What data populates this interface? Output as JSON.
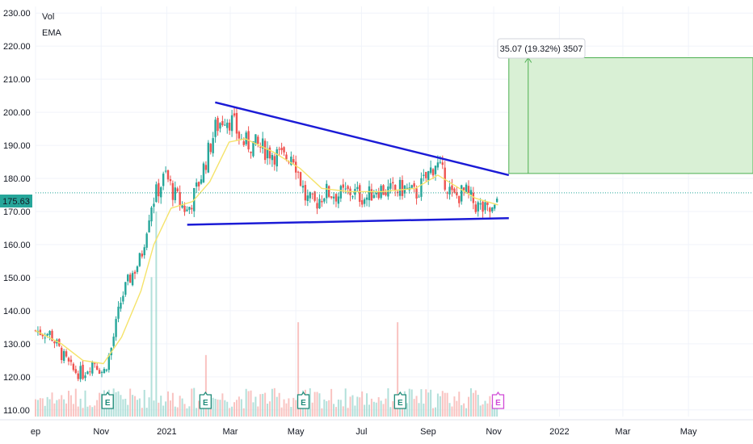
{
  "legend": [
    "Vol",
    "EMA"
  ],
  "current_price": "175.63",
  "measure_label": "35.07 (19.32%) 3507",
  "colors": {
    "up": "#26a69a",
    "down": "#ef5350",
    "ema": "#f5e36a",
    "trendline": "#1b1bd6",
    "measure_fill": "#d9f0d5",
    "measure_stroke": "#4caf50",
    "price_line": "#26a69a",
    "earnings_past": "#1e8a78",
    "earnings_future": "#d04ad6"
  },
  "icons": {
    "earnings_marker": "earnings-e-icon"
  },
  "chart_data": {
    "type": "candlestick",
    "title": "",
    "y_axis": {
      "range": [
        108,
        232
      ],
      "ticks": [
        "110.00",
        "120.00",
        "130.00",
        "140.00",
        "150.00",
        "160.00",
        "170.00",
        "180.00",
        "190.00",
        "200.00",
        "210.00",
        "220.00",
        "230.00"
      ]
    },
    "x_axis": {
      "range": [
        "2020-09-01",
        "2022-06-30"
      ],
      "ticks": [
        {
          "date": "2020-09-01",
          "label": "ep"
        },
        {
          "date": "2020-11-01",
          "label": "Nov"
        },
        {
          "date": "2021-01-01",
          "label": "2021"
        },
        {
          "date": "2021-03-01",
          "label": "Mar"
        },
        {
          "date": "2021-05-01",
          "label": "May"
        },
        {
          "date": "2021-07-01",
          "label": "Jul"
        },
        {
          "date": "2021-09-01",
          "label": "Sep"
        },
        {
          "date": "2021-11-01",
          "label": "Nov"
        },
        {
          "date": "2022-01-01",
          "label": "2022"
        },
        {
          "date": "2022-03-01",
          "label": "Mar"
        },
        {
          "date": "2022-05-01",
          "label": "May"
        }
      ]
    },
    "price_path": [
      [
        "2020-09-01",
        134
      ],
      [
        "2020-09-15",
        133
      ],
      [
        "2020-09-25",
        127
      ],
      [
        "2020-10-05",
        122
      ],
      [
        "2020-10-15",
        121
      ],
      [
        "2020-10-25",
        125
      ],
      [
        "2020-11-03",
        121
      ],
      [
        "2020-11-10",
        128
      ],
      [
        "2020-11-20",
        144
      ],
      [
        "2020-11-28",
        150
      ],
      [
        "2020-12-08",
        156
      ],
      [
        "2020-12-17",
        172
      ],
      [
        "2020-12-23",
        176
      ],
      [
        "2020-12-31",
        181
      ],
      [
        "2021-01-08",
        175
      ],
      [
        "2021-01-20",
        170
      ],
      [
        "2021-01-28",
        176
      ],
      [
        "2021-02-06",
        185
      ],
      [
        "2021-02-15",
        195
      ],
      [
        "2021-02-24",
        199
      ],
      [
        "2021-03-03",
        197
      ],
      [
        "2021-03-12",
        191
      ],
      [
        "2021-03-25",
        190
      ],
      [
        "2021-04-08",
        188
      ],
      [
        "2021-04-20",
        186
      ],
      [
        "2021-04-28",
        188
      ],
      [
        "2021-05-10",
        174
      ],
      [
        "2021-05-18",
        172
      ],
      [
        "2021-05-28",
        176
      ],
      [
        "2021-06-10",
        175
      ],
      [
        "2021-06-22",
        176
      ],
      [
        "2021-07-05",
        174
      ],
      [
        "2021-07-15",
        177
      ],
      [
        "2021-07-28",
        176
      ],
      [
        "2021-08-10",
        177
      ],
      [
        "2021-08-20",
        175
      ],
      [
        "2021-08-30",
        180
      ],
      [
        "2021-09-08",
        185
      ],
      [
        "2021-09-16",
        180
      ],
      [
        "2021-09-24",
        174
      ],
      [
        "2021-10-05",
        176
      ],
      [
        "2021-10-15",
        172
      ],
      [
        "2021-10-25",
        170
      ],
      [
        "2021-11-02",
        170
      ],
      [
        "2021-11-05",
        175.63
      ]
    ],
    "ema_path": [
      [
        "2020-09-01",
        134
      ],
      [
        "2020-09-25",
        130
      ],
      [
        "2020-10-15",
        125
      ],
      [
        "2020-11-03",
        124
      ],
      [
        "2020-11-20",
        132
      ],
      [
        "2020-12-08",
        146
      ],
      [
        "2020-12-20",
        160
      ],
      [
        "2021-01-05",
        171
      ],
      [
        "2021-01-25",
        173
      ],
      [
        "2021-02-10",
        179
      ],
      [
        "2021-02-28",
        191
      ],
      [
        "2021-03-15",
        192
      ],
      [
        "2021-04-10",
        188
      ],
      [
        "2021-05-05",
        183
      ],
      [
        "2021-05-25",
        177
      ],
      [
        "2021-06-20",
        176
      ],
      [
        "2021-07-20",
        176
      ],
      [
        "2021-08-20",
        177
      ],
      [
        "2021-09-10",
        181
      ],
      [
        "2021-09-25",
        178
      ],
      [
        "2021-10-15",
        174
      ],
      [
        "2021-11-05",
        172
      ]
    ],
    "trendlines": [
      {
        "start": [
          "2021-02-15",
          203
        ],
        "end": [
          "2021-11-15",
          181
        ]
      },
      {
        "start": [
          "2021-01-20",
          166
        ],
        "end": [
          "2021-11-15",
          168
        ]
      }
    ],
    "measure_box": {
      "start": "2021-11-15",
      "end": "2022-06-30",
      "low": 181.5,
      "high": 216.5,
      "arrow_date": "2021-12-03"
    },
    "earnings_dates": [
      {
        "date": "2020-11-07",
        "status": "past"
      },
      {
        "date": "2021-02-06",
        "status": "past"
      },
      {
        "date": "2021-05-08",
        "status": "past"
      },
      {
        "date": "2021-08-06",
        "status": "past"
      },
      {
        "date": "2021-11-05",
        "status": "upcoming"
      }
    ],
    "volume_spikes": [
      [
        "2020-12-23",
        0.5
      ],
      [
        "2020-12-18",
        0.34
      ],
      [
        "2021-05-04",
        0.23
      ],
      [
        "2021-08-03",
        0.23
      ],
      [
        "2021-02-06",
        0.15
      ]
    ]
  }
}
